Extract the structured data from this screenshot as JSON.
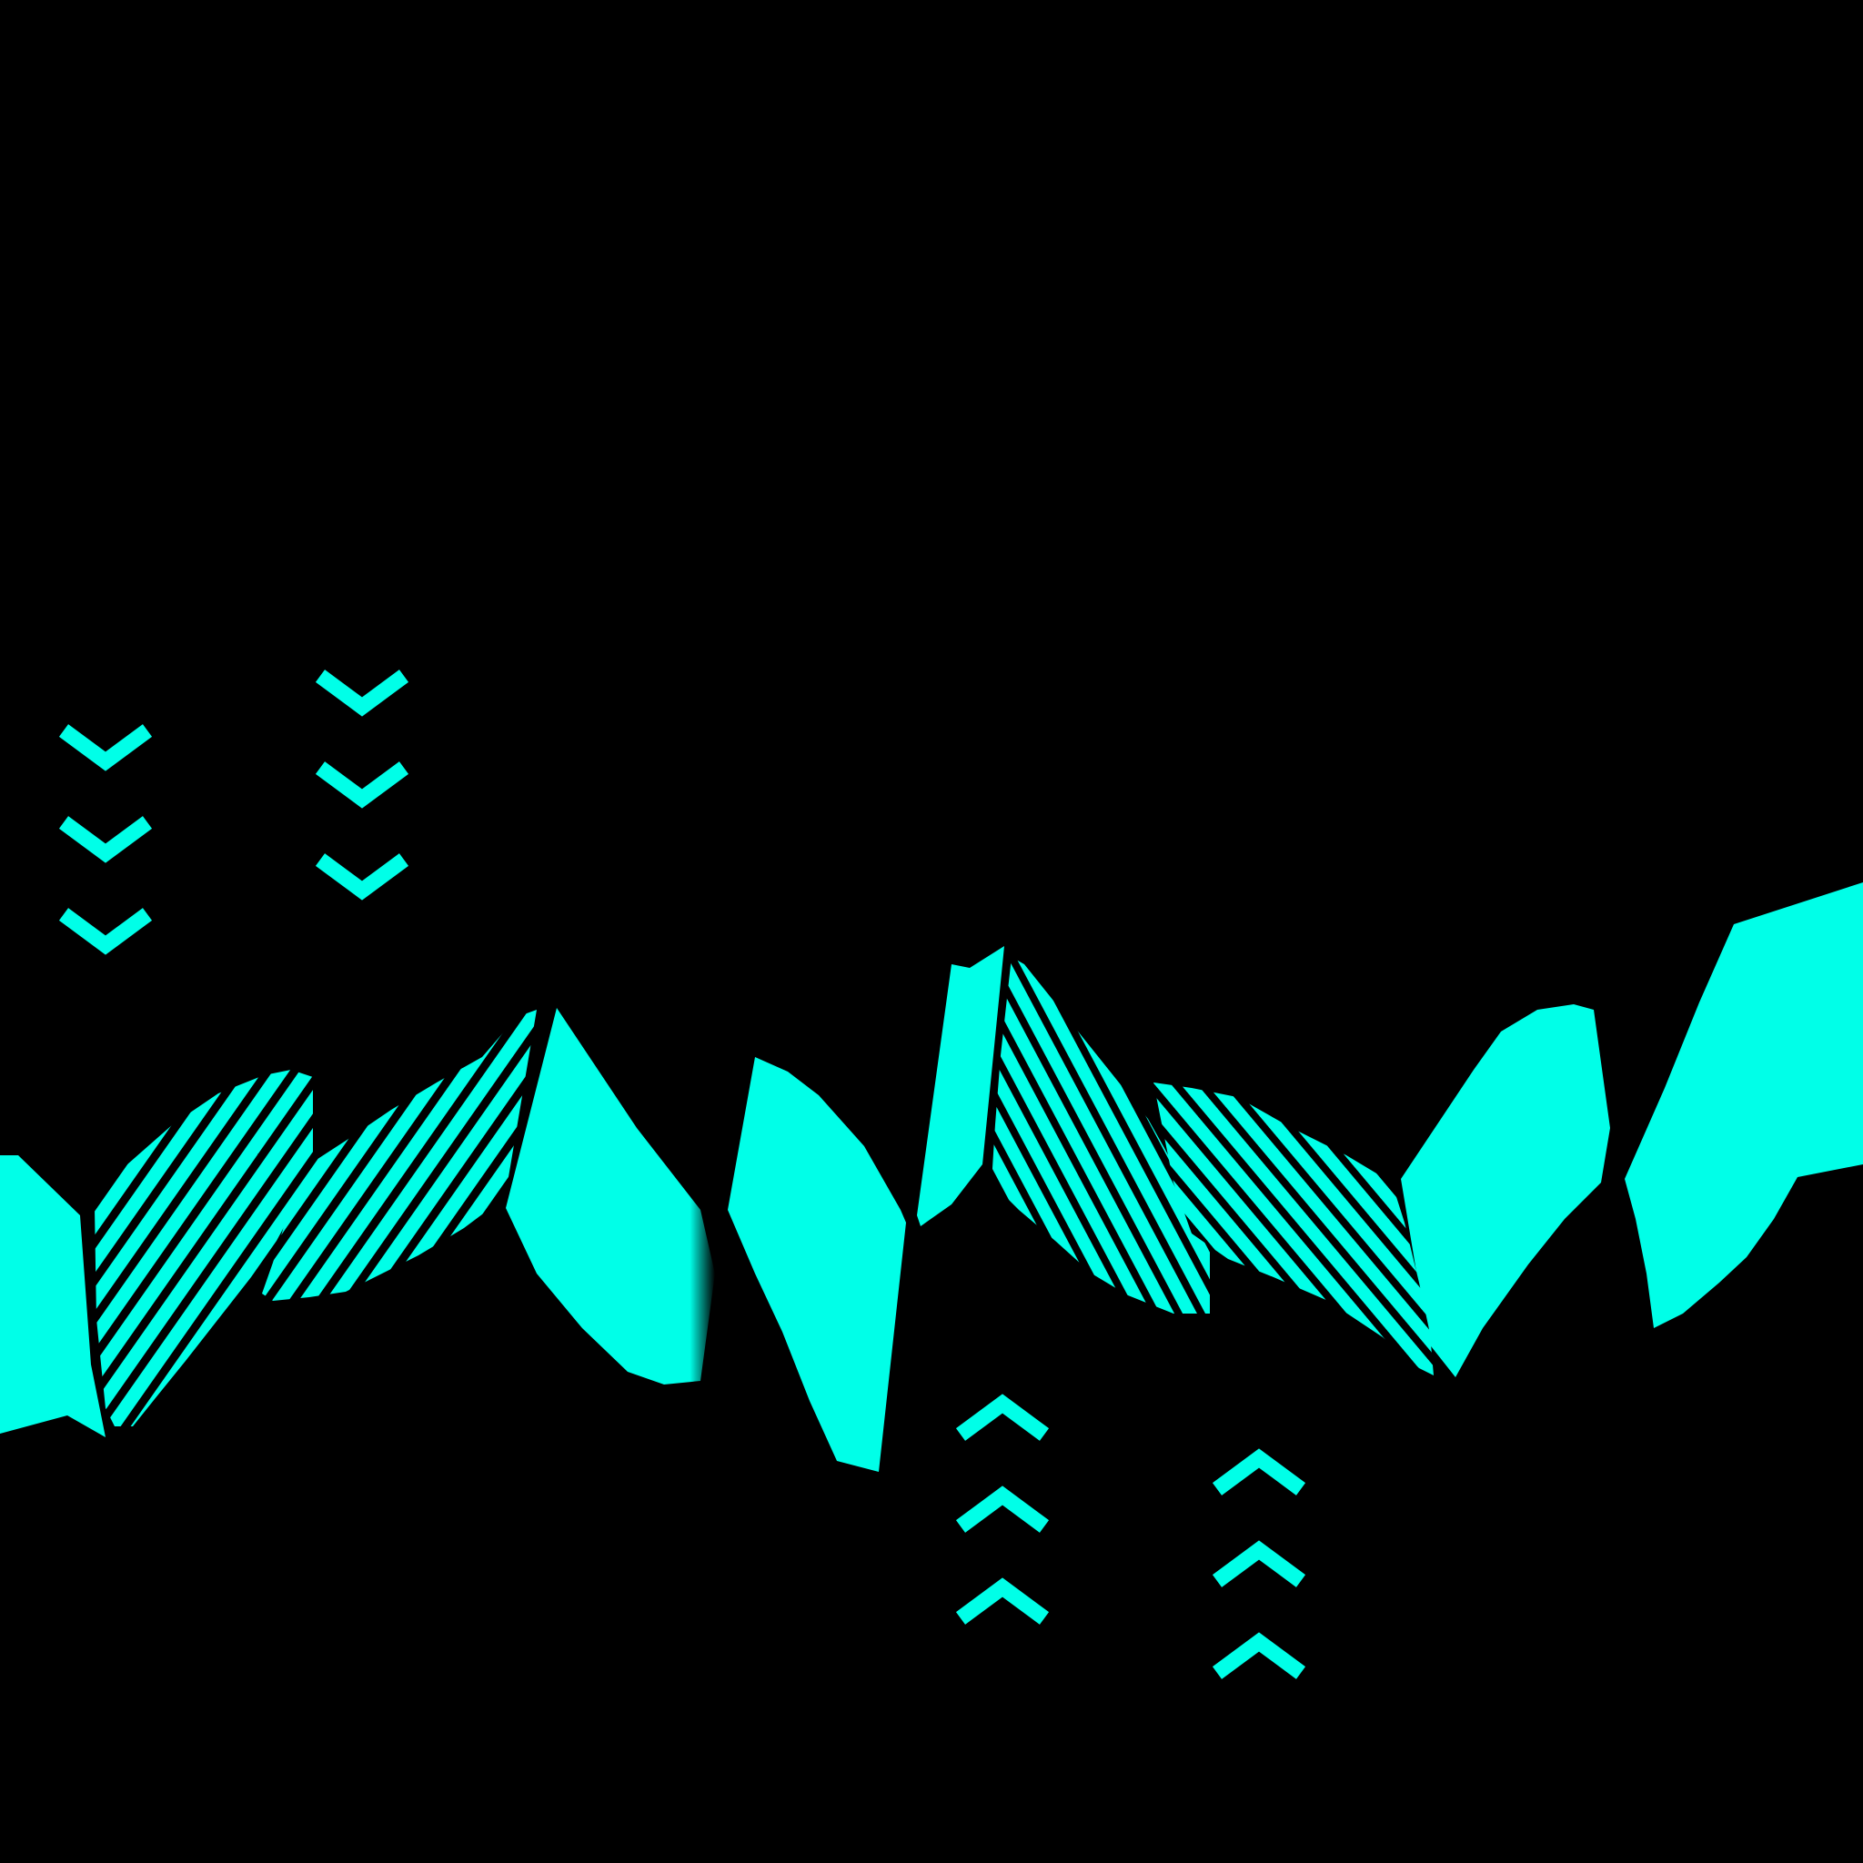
{
  "artwork": {
    "background_color": "#000000",
    "accent_color": "#00FFE8",
    "stripe_color": "#000000",
    "shape_style": "folded zigzag ribbon of solid and striped panels",
    "chevron_groups": [
      {
        "direction": "down",
        "count": 3
      },
      {
        "direction": "down",
        "count": 3
      },
      {
        "direction": "up",
        "count": 3
      },
      {
        "direction": "up",
        "count": 3
      }
    ]
  }
}
